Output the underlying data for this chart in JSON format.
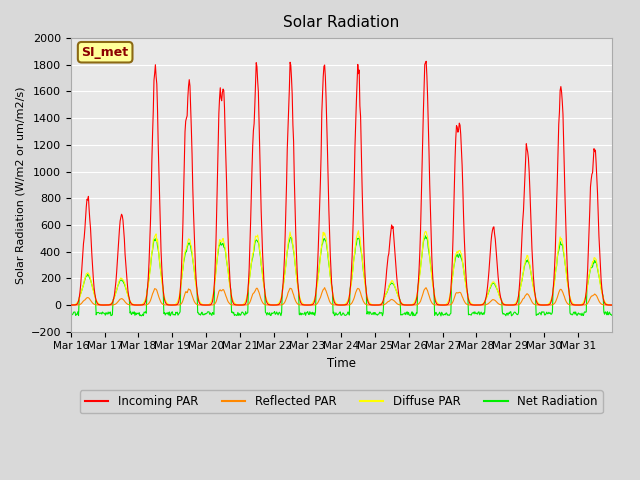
{
  "title": "Solar Radiation",
  "ylabel": "Solar Radiation (W/m2 or um/m2/s)",
  "xlabel": "Time",
  "ylim": [
    -200,
    2000
  ],
  "yticks": [
    -200,
    0,
    200,
    400,
    600,
    800,
    1000,
    1200,
    1400,
    1600,
    1800,
    2000
  ],
  "x_tick_labels": [
    "Mar 16",
    "Mar 17",
    "Mar 18",
    "Mar 19",
    "Mar 20",
    "Mar 21",
    "Mar 22",
    "Mar 23",
    "Mar 24",
    "Mar 25",
    "Mar 26",
    "Mar 27",
    "Mar 28",
    "Mar 29",
    "Mar 30",
    "Mar 31"
  ],
  "bg_color": "#e8e8e8",
  "fig_bg_color": "#d9d9d9",
  "grid_color": "#ffffff",
  "colors": {
    "incoming": "#ff0000",
    "reflected": "#ff8800",
    "diffuse": "#ffff00",
    "net": "#00ee00"
  },
  "legend_entries": [
    "Incoming PAR",
    "Reflected PAR",
    "Diffuse PAR",
    "Net Radiation"
  ],
  "annotation": "SI_met",
  "n_days": 16,
  "incoming_peaks": [
    800,
    680,
    1760,
    1670,
    1640,
    1760,
    1780,
    1800,
    1790,
    590,
    1840,
    1380,
    580,
    1200,
    1660,
    1160
  ],
  "incoming_peaks2": [
    530,
    0,
    0,
    1420,
    1620,
    1350,
    0,
    900,
    0,
    400,
    720,
    1340,
    240,
    770,
    0,
    1010
  ],
  "reflected_scale": 0.07,
  "diffuse_scale": 0.3,
  "net_scale": 0.28
}
